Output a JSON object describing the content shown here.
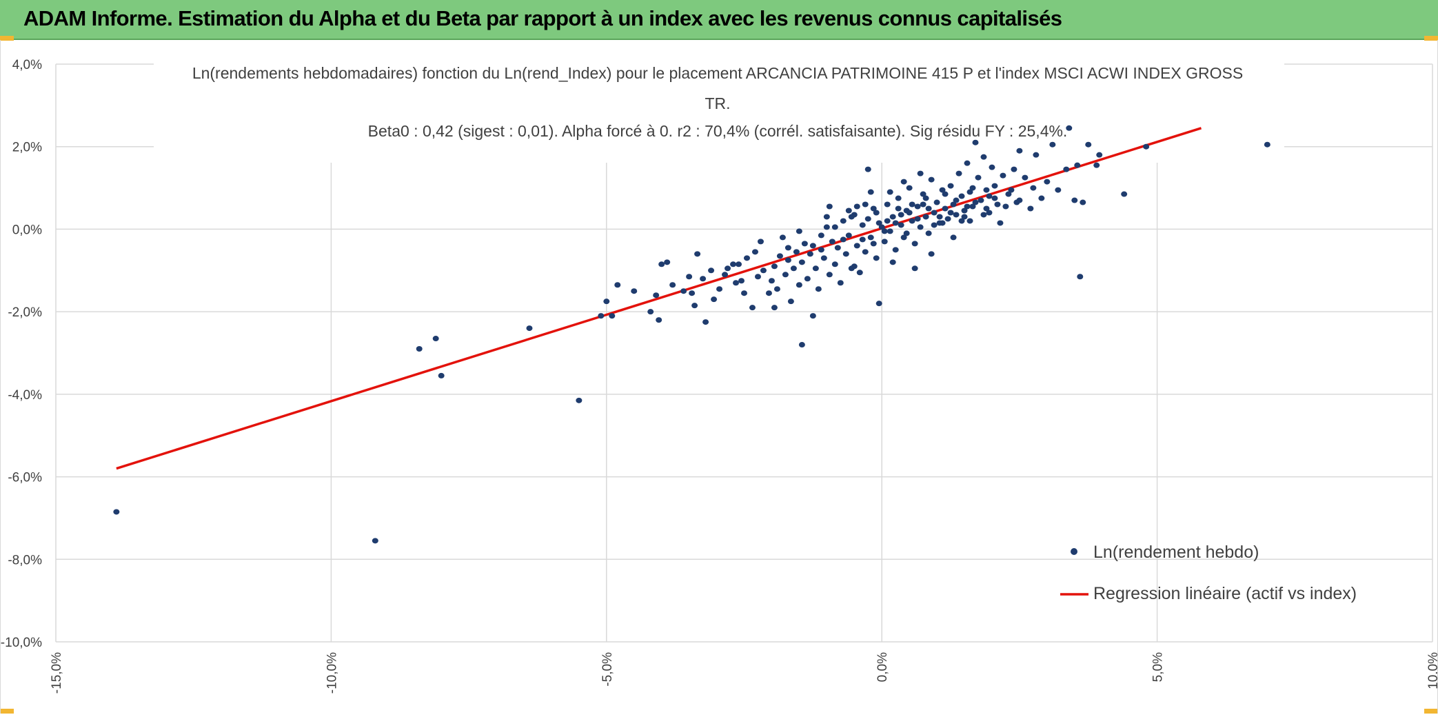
{
  "header": {
    "title": "ADAM Informe. Estimation du Alpha et du Beta par rapport à un index avec les revenus connus capitalisés"
  },
  "colors": {
    "header_bg": "#7ec97e",
    "points": "#1f3c6e",
    "regression": "#e3120b",
    "grid": "#d9d9d9"
  },
  "chart_data": {
    "type": "scatter",
    "title_lines": [
      "Ln(rendements hebdomadaires) fonction du Ln(rend_Index) pour le placement ARCANCIA PATRIMOINE 415 P et l'index MSCI ACWI INDEX GROSS",
      "TR.",
      "Beta0 : 0,42 (sigest : 0,01). Alpha forcé à 0. r2 : 70,4% (corrél. satisfaisante). Sig résidu FY : 25,4%."
    ],
    "xlim": [
      -15,
      10
    ],
    "ylim": [
      -10,
      4
    ],
    "x_ticks": [
      -15,
      -10,
      -5,
      0,
      5,
      10
    ],
    "x_tick_labels": [
      "-15,0%",
      "-10,0%",
      "-5,0%",
      "0,0%",
      "5,0%",
      "10,0%"
    ],
    "y_ticks": [
      4,
      2,
      0,
      -2,
      -4,
      -6,
      -8,
      -10
    ],
    "y_tick_labels": [
      "4,0%",
      "2,0%",
      "0,0%",
      "-2,0%",
      "-4,0%",
      "-6,0%",
      "-8,0%",
      "-10,0%"
    ],
    "grid": true,
    "legend_position": "bottom-right",
    "series": [
      {
        "name": "Ln(rendement hebdo)",
        "type": "scatter",
        "points": [
          [
            -13.9,
            -6.85
          ],
          [
            -9.2,
            -7.55
          ],
          [
            -8.4,
            -2.9
          ],
          [
            -8.1,
            -2.65
          ],
          [
            -8.0,
            -3.55
          ],
          [
            -6.4,
            -2.4
          ],
          [
            -5.5,
            -4.15
          ],
          [
            -5.1,
            -2.1
          ],
          [
            -5.0,
            -1.75
          ],
          [
            -4.9,
            -2.1
          ],
          [
            -4.8,
            -1.35
          ],
          [
            -4.5,
            -1.5
          ],
          [
            -4.2,
            -2.0
          ],
          [
            -4.1,
            -1.6
          ],
          [
            -4.05,
            -2.2
          ],
          [
            -4.0,
            -0.85
          ],
          [
            -3.9,
            -0.8
          ],
          [
            -3.8,
            -1.35
          ],
          [
            -3.6,
            -1.5
          ],
          [
            -3.5,
            -1.15
          ],
          [
            -3.45,
            -1.55
          ],
          [
            -3.4,
            -1.85
          ],
          [
            -3.35,
            -0.6
          ],
          [
            -3.25,
            -1.2
          ],
          [
            -3.2,
            -2.25
          ],
          [
            -3.1,
            -1.0
          ],
          [
            -3.05,
            -1.7
          ],
          [
            -2.95,
            -1.45
          ],
          [
            -2.85,
            -1.1
          ],
          [
            -2.8,
            -0.95
          ],
          [
            -2.7,
            -0.85
          ],
          [
            -2.65,
            -1.3
          ],
          [
            -2.55,
            -1.25
          ],
          [
            -2.5,
            -1.55
          ],
          [
            -2.45,
            -0.7
          ],
          [
            -2.35,
            -1.9
          ],
          [
            -2.3,
            -0.55
          ],
          [
            -2.25,
            -1.15
          ],
          [
            -2.15,
            -1.0
          ],
          [
            -2.05,
            -1.55
          ],
          [
            -2.0,
            -1.25
          ],
          [
            -1.95,
            -0.9
          ],
          [
            -1.9,
            -1.45
          ],
          [
            -1.85,
            -0.65
          ],
          [
            -1.8,
            -0.2
          ],
          [
            -1.75,
            -1.1
          ],
          [
            -1.7,
            -0.75
          ],
          [
            -1.65,
            -1.75
          ],
          [
            -1.6,
            -0.95
          ],
          [
            -1.55,
            -0.55
          ],
          [
            -1.5,
            -1.35
          ],
          [
            -1.45,
            -0.8
          ],
          [
            -1.4,
            -0.35
          ],
          [
            -1.35,
            -1.2
          ],
          [
            -1.3,
            -0.6
          ],
          [
            -1.25,
            -2.1
          ],
          [
            -1.2,
            -0.95
          ],
          [
            -1.15,
            -1.45
          ],
          [
            -1.1,
            -0.5
          ],
          [
            -1.05,
            -0.7
          ],
          [
            -1.0,
            0.05
          ],
          [
            -0.95,
            -1.1
          ],
          [
            -0.9,
            -0.3
          ],
          [
            -0.85,
            -0.85
          ],
          [
            -0.8,
            -0.45
          ],
          [
            -0.75,
            -1.3
          ],
          [
            -0.7,
            0.2
          ],
          [
            -0.65,
            -0.6
          ],
          [
            -0.6,
            -0.15
          ],
          [
            -0.55,
            -0.95
          ],
          [
            -0.5,
            0.35
          ],
          [
            -0.45,
            -0.4
          ],
          [
            -0.4,
            -1.05
          ],
          [
            -0.35,
            0.1
          ],
          [
            -0.3,
            -0.55
          ],
          [
            -0.25,
            1.45
          ],
          [
            -0.2,
            -0.2
          ],
          [
            -0.15,
            0.5
          ],
          [
            -0.1,
            -0.7
          ],
          [
            -0.05,
            0.15
          ],
          [
            0.0,
            0.05
          ],
          [
            0.05,
            -0.3
          ],
          [
            0.1,
            0.6
          ],
          [
            0.15,
            -0.05
          ],
          [
            0.2,
            0.3
          ],
          [
            0.25,
            -0.5
          ],
          [
            0.3,
            0.75
          ],
          [
            0.35,
            0.1
          ],
          [
            0.4,
            -0.2
          ],
          [
            0.45,
            0.45
          ],
          [
            0.5,
            1.0
          ],
          [
            0.55,
            0.2
          ],
          [
            0.6,
            -0.35
          ],
          [
            0.65,
            0.55
          ],
          [
            0.7,
            0.05
          ],
          [
            0.75,
            0.85
          ],
          [
            0.8,
            0.3
          ],
          [
            0.85,
            -0.1
          ],
          [
            0.9,
            1.2
          ],
          [
            0.95,
            0.4
          ],
          [
            1.0,
            0.65
          ],
          [
            1.05,
            0.15
          ],
          [
            1.1,
            0.95
          ],
          [
            1.15,
            0.5
          ],
          [
            1.2,
            0.25
          ],
          [
            1.25,
            1.05
          ],
          [
            1.3,
            0.6
          ],
          [
            1.35,
            0.35
          ],
          [
            1.4,
            1.35
          ],
          [
            1.45,
            0.8
          ],
          [
            1.5,
            0.45
          ],
          [
            1.55,
            1.6
          ],
          [
            1.6,
            0.9
          ],
          [
            1.65,
            0.55
          ],
          [
            1.7,
            2.1
          ],
          [
            1.75,
            1.25
          ],
          [
            1.8,
            0.7
          ],
          [
            1.85,
            1.75
          ],
          [
            1.9,
            0.95
          ],
          [
            1.95,
            0.4
          ],
          [
            2.0,
            1.5
          ],
          [
            2.05,
            1.05
          ],
          [
            2.1,
            0.6
          ],
          [
            2.2,
            1.3
          ],
          [
            2.3,
            0.85
          ],
          [
            2.4,
            1.45
          ],
          [
            2.5,
            0.7
          ],
          [
            2.6,
            1.25
          ],
          [
            2.7,
            0.5
          ],
          [
            2.8,
            1.8
          ],
          [
            2.9,
            0.75
          ],
          [
            3.0,
            1.15
          ],
          [
            3.1,
            2.05
          ],
          [
            3.2,
            0.95
          ],
          [
            3.35,
            1.45
          ],
          [
            3.4,
            2.45
          ],
          [
            3.5,
            0.7
          ],
          [
            3.55,
            1.55
          ],
          [
            3.6,
            -1.15
          ],
          [
            3.65,
            0.65
          ],
          [
            3.75,
            2.05
          ],
          [
            3.9,
            1.55
          ],
          [
            3.95,
            1.8
          ],
          [
            4.4,
            0.85
          ],
          [
            4.8,
            2.0
          ],
          [
            7.0,
            2.05
          ],
          [
            -0.3,
            0.6
          ],
          [
            -0.6,
            0.45
          ],
          [
            0.2,
            -0.8
          ],
          [
            0.6,
            -0.95
          ],
          [
            0.9,
            -0.6
          ],
          [
            -1.0,
            0.3
          ],
          [
            -1.7,
            -0.45
          ],
          [
            -2.6,
            -0.85
          ],
          [
            1.3,
            -0.2
          ],
          [
            0.4,
            1.15
          ],
          [
            -0.2,
            0.9
          ],
          [
            0.7,
            1.35
          ],
          [
            -0.5,
            -0.9
          ],
          [
            -1.5,
            -0.05
          ],
          [
            0.15,
            0.9
          ],
          [
            -0.05,
            -1.8
          ],
          [
            1.6,
            0.2
          ],
          [
            2.15,
            0.15
          ],
          [
            2.5,
            1.9
          ],
          [
            -2.2,
            -0.3
          ],
          [
            -1.95,
            -1.9
          ],
          [
            -1.45,
            -2.8
          ],
          [
            -0.95,
            0.55
          ],
          [
            0.05,
            -0.05
          ],
          [
            -0.25,
            0.25
          ],
          [
            0.35,
            0.35
          ],
          [
            0.55,
            0.6
          ],
          [
            0.8,
            0.75
          ],
          [
            1.15,
            0.85
          ],
          [
            1.45,
            0.2
          ],
          [
            1.7,
            0.65
          ],
          [
            1.95,
            0.8
          ],
          [
            2.25,
            0.55
          ],
          [
            -0.7,
            -0.25
          ],
          [
            -0.45,
            0.55
          ],
          [
            -0.15,
            -0.35
          ],
          [
            0.25,
            0.15
          ],
          [
            0.45,
            -0.1
          ],
          [
            0.65,
            0.25
          ],
          [
            0.95,
            0.1
          ],
          [
            1.25,
            0.4
          ],
          [
            1.55,
            0.55
          ],
          [
            1.85,
            0.35
          ],
          [
            2.35,
            0.95
          ],
          [
            -1.25,
            -0.4
          ],
          [
            -0.85,
            0.05
          ],
          [
            -0.35,
            -0.25
          ],
          [
            0.1,
            0.2
          ],
          [
            0.5,
            0.4
          ],
          [
            0.85,
            0.5
          ],
          [
            1.05,
            0.3
          ],
          [
            1.35,
            0.7
          ],
          [
            1.65,
            1.0
          ],
          [
            2.05,
            0.75
          ],
          [
            -1.1,
            -0.15
          ],
          [
            -0.55,
            0.3
          ],
          [
            -0.1,
            0.4
          ],
          [
            0.3,
            0.5
          ],
          [
            0.75,
            0.6
          ],
          [
            1.1,
            0.15
          ],
          [
            1.5,
            0.3
          ],
          [
            1.9,
            0.5
          ],
          [
            2.45,
            0.65
          ],
          [
            2.75,
            1.0
          ]
        ]
      },
      {
        "name": "Regression linéaire (actif vs index)",
        "type": "line",
        "points": [
          [
            -13.9,
            -5.8
          ],
          [
            5.8,
            2.45
          ]
        ]
      }
    ]
  }
}
